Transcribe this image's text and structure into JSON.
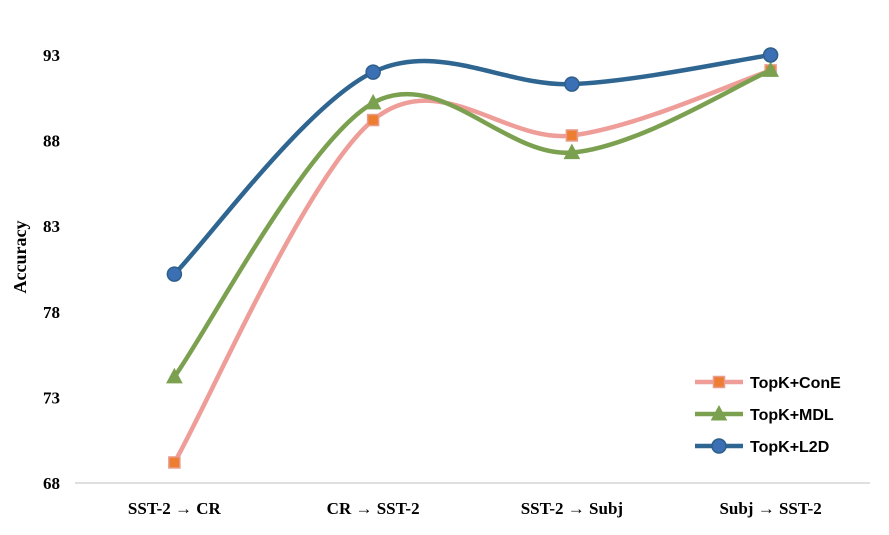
{
  "chart_data": {
    "type": "line",
    "title": "",
    "xlabel": "",
    "ylabel": "Accuracy",
    "ylim": [
      68,
      93
    ],
    "yticks": [
      "68",
      "73",
      "78",
      "83",
      "88",
      "93"
    ],
    "categories": [
      "SST-2 → CR",
      "CR → SST-2",
      "SST-2 → Subj",
      "Subj → SST-2"
    ],
    "series": [
      {
        "name": "TopK+ConE",
        "values": [
          69.2,
          89.2,
          88.3,
          92.1
        ],
        "color": "#ee9d98",
        "marker": "square",
        "marker_fill": "#ed7d31"
      },
      {
        "name": "TopK+MDL",
        "values": [
          74.2,
          90.2,
          87.3,
          92.1
        ],
        "color": "#7ba150",
        "marker": "triangle",
        "marker_fill": "#7ba150"
      },
      {
        "name": "TopK+L2D",
        "values": [
          80.2,
          92.0,
          91.3,
          93.0
        ],
        "color": "#2e6591",
        "marker": "circle",
        "marker_fill": "#3b70b4"
      }
    ],
    "legend_position": "bottom-right",
    "grid": false
  }
}
